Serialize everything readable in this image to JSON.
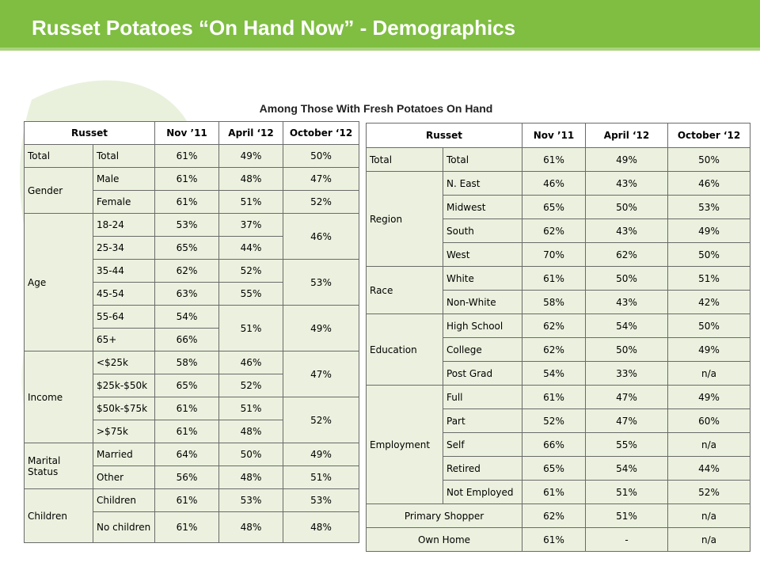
{
  "title": "Russet Potatoes “On Hand Now” -  Demographics",
  "subtitle": "Among Those With Fresh Potatoes On Hand",
  "colors": {
    "header_bar": "#7fbe41",
    "cell_fill": "#ebf1de",
    "leaf_decor": "#e6efd8"
  },
  "left_table": {
    "headers": [
      "Russet",
      "Nov ’11",
      "April ‘12",
      "October ‘12"
    ],
    "total": {
      "group": "Total",
      "label": "Total",
      "nov": "61%",
      "apr": "49%",
      "oct": "50%"
    },
    "gender": {
      "group": "Gender",
      "rows": [
        {
          "label": "Male",
          "nov": "61%",
          "apr": "48%",
          "oct": "47%"
        },
        {
          "label": "Female",
          "nov": "61%",
          "apr": "51%",
          "oct": "52%"
        }
      ]
    },
    "age": {
      "group": "Age",
      "rows": [
        {
          "label": "18-24",
          "nov": "53%",
          "apr": "37%"
        },
        {
          "label": "25-34",
          "nov": "65%",
          "apr": "44%"
        },
        {
          "label": "35-44",
          "nov": "62%",
          "apr": "52%"
        },
        {
          "label": "45-54",
          "nov": "63%",
          "apr": "55%"
        },
        {
          "label": "55-64",
          "nov": "54%"
        },
        {
          "label": "65+",
          "nov": "66%"
        }
      ],
      "oct_18_34": "46%",
      "oct_35_54": "53%",
      "oct_55_plus": "49%",
      "apr_55_plus": "51%"
    },
    "income": {
      "group": "Income",
      "rows": [
        {
          "label": "<$25k",
          "nov": "58%",
          "apr": "46%"
        },
        {
          "label": "$25k-$50k",
          "nov": "65%",
          "apr": "52%"
        },
        {
          "label": "$50k-$75k",
          "nov": "61%",
          "apr": "51%"
        },
        {
          "label": ">$75k",
          "nov": "61%",
          "apr": "48%"
        }
      ],
      "oct_under_50k": "47%",
      "oct_over_50k": "52%"
    },
    "marital": {
      "group": "Marital Status",
      "rows": [
        {
          "label": "Married",
          "nov": "64%",
          "apr": "50%",
          "oct": "49%"
        },
        {
          "label": "Other",
          "nov": "56%",
          "apr": "48%",
          "oct": "51%"
        }
      ]
    },
    "children": {
      "group": "Children",
      "rows": [
        {
          "label": "Children",
          "nov": "61%",
          "apr": "53%",
          "oct": "53%"
        },
        {
          "label": "No children",
          "nov": "61%",
          "apr": "48%",
          "oct": "48%"
        }
      ]
    }
  },
  "right_table": {
    "headers": [
      "Russet",
      "Nov ’11",
      "April ‘12",
      "October ‘12"
    ],
    "total": {
      "group": "Total",
      "label": "Total",
      "nov": "61%",
      "apr": "49%",
      "oct": "50%"
    },
    "region": {
      "group": "Region",
      "rows": [
        {
          "label": "N. East",
          "nov": "46%",
          "apr": "43%",
          "oct": "46%"
        },
        {
          "label": "Midwest",
          "nov": "65%",
          "apr": "50%",
          "oct": "53%"
        },
        {
          "label": "South",
          "nov": "62%",
          "apr": "43%",
          "oct": "49%"
        },
        {
          "label": "West",
          "nov": "70%",
          "apr": "62%",
          "oct": "50%"
        }
      ]
    },
    "race": {
      "group": "Race",
      "rows": [
        {
          "label": "White",
          "nov": "61%",
          "apr": "50%",
          "oct": "51%"
        },
        {
          "label": "Non-White",
          "nov": "58%",
          "apr": "43%",
          "oct": "42%"
        }
      ]
    },
    "education": {
      "group": "Education",
      "rows": [
        {
          "label": "High School",
          "nov": "62%",
          "apr": "54%",
          "oct": "50%"
        },
        {
          "label": "College",
          "nov": "62%",
          "apr": "50%",
          "oct": "49%"
        },
        {
          "label": "Post Grad",
          "nov": "54%",
          "apr": "33%",
          "oct": "n/a"
        }
      ]
    },
    "employment": {
      "group": "Employment",
      "rows": [
        {
          "label": "Full",
          "nov": "61%",
          "apr": "47%",
          "oct": "49%"
        },
        {
          "label": "Part",
          "nov": "52%",
          "apr": "47%",
          "oct": "60%"
        },
        {
          "label": "Self",
          "nov": "66%",
          "apr": "55%",
          "oct": "n/a"
        },
        {
          "label": "Retired",
          "nov": "65%",
          "apr": "54%",
          "oct": "44%"
        },
        {
          "label": "Not Employed",
          "nov": "61%",
          "apr": "51%",
          "oct": "52%"
        }
      ]
    },
    "primary_shopper": {
      "label": "Primary Shopper",
      "nov": "62%",
      "apr": "51%",
      "oct": "n/a"
    },
    "own_home": {
      "label": "Own Home",
      "nov": "61%",
      "apr": "-",
      "oct": "n/a"
    }
  }
}
